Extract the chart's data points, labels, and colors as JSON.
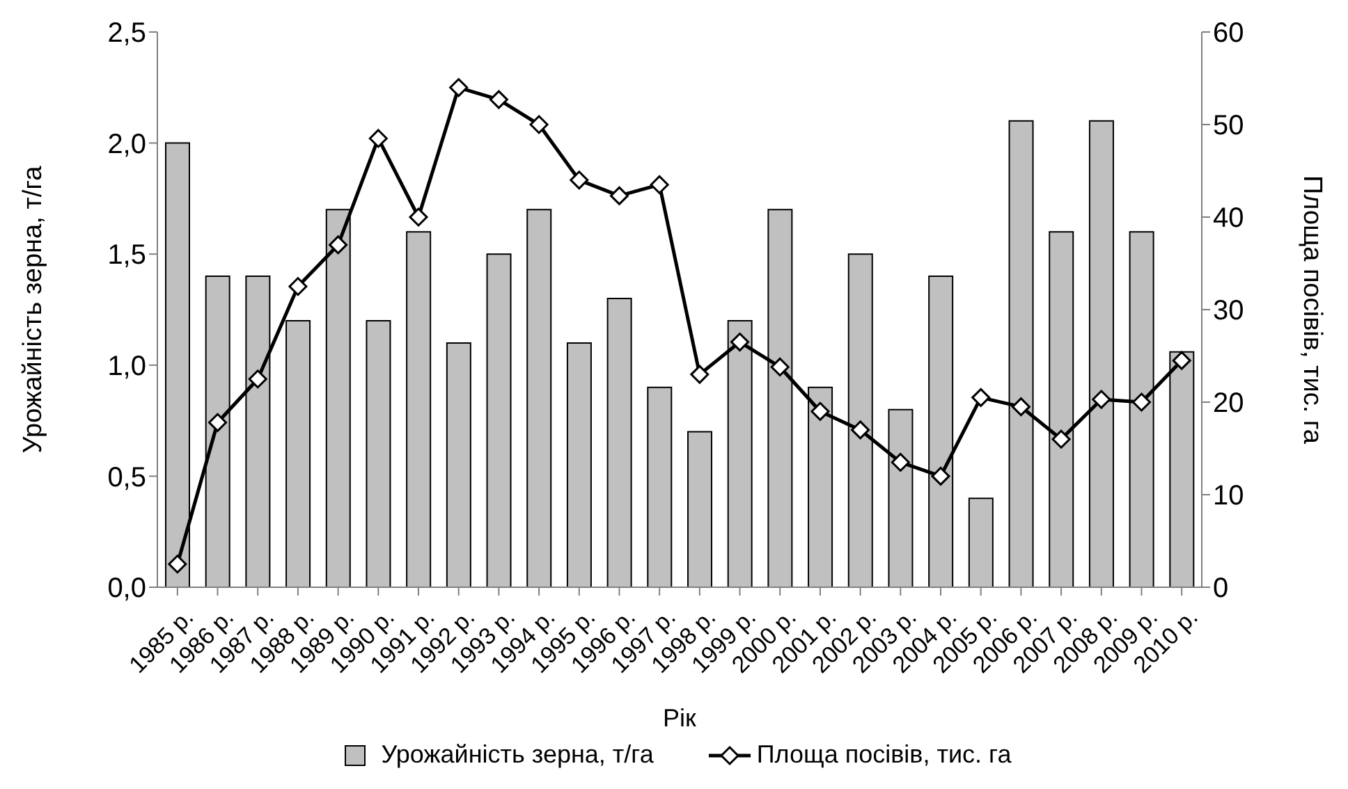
{
  "chart_data": {
    "type": "bar",
    "xlabel": "Рік",
    "ylabel": "Урожайність зерна, т/га",
    "y2label": "Площа посівів, тис. га",
    "categories": [
      "1985 р.",
      "1986 р.",
      "1987 р.",
      "1988 р.",
      "1989 р.",
      "1990 р.",
      "1991 р.",
      "1992 р.",
      "1993 р.",
      "1994 р.",
      "1995 р.",
      "1996 р.",
      "1997 р.",
      "1998 р.",
      "1999 р.",
      "2000 р.",
      "2001 р.",
      "2002 р.",
      "2003 р.",
      "2004 р.",
      "2005 р.",
      "2006 р.",
      "2007 р.",
      "2008 р.",
      "2009 р.",
      "2010 р."
    ],
    "series": [
      {
        "name": "Урожайність зерна, т/га",
        "color": "#c0c0c0",
        "values": [
          2.0,
          1.4,
          1.4,
          1.2,
          1.7,
          1.2,
          1.6,
          1.1,
          1.5,
          1.7,
          1.1,
          1.3,
          0.9,
          0.7,
          1.2,
          1.7,
          0.9,
          1.5,
          0.8,
          1.4,
          0.4,
          2.1,
          1.6,
          2.1,
          1.6,
          1.06
        ]
      },
      {
        "name": "Площа посівів, тис. га",
        "type": "line",
        "axis": "y2",
        "color": "#000000",
        "marker": "diamond",
        "values": [
          2.5,
          17.8,
          22.5,
          32.5,
          37,
          48.5,
          40,
          54,
          52.7,
          50,
          44,
          42.3,
          43.5,
          23,
          26.5,
          23.8,
          19,
          17,
          13.5,
          12,
          20.5,
          19.5,
          16,
          20.3,
          20,
          24.5
        ]
      }
    ],
    "ylim": [
      0,
      2.5
    ],
    "yticks": [
      {
        "value": 0,
        "label": "0,0"
      },
      {
        "value": 0.5,
        "label": "0,5"
      },
      {
        "value": 1,
        "label": "1,0"
      },
      {
        "value": 1.5,
        "label": "1,5"
      },
      {
        "value": 2,
        "label": "2,0"
      },
      {
        "value": 2.5,
        "label": "2,5"
      }
    ],
    "y2lim": [
      0,
      60
    ],
    "y2ticks": [
      0,
      10,
      20,
      30,
      40,
      50,
      60
    ],
    "grid": false,
    "legend": "bottom"
  }
}
